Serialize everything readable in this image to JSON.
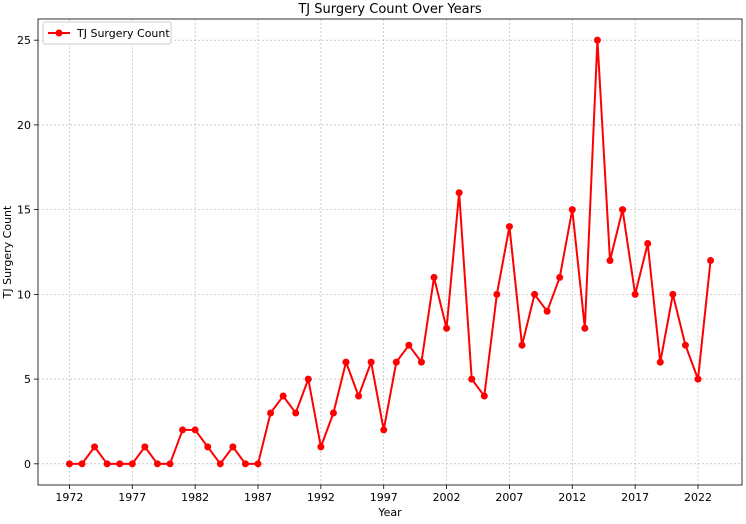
{
  "chart_data": {
    "type": "line",
    "title": "TJ Surgery Count Over Years",
    "xlabel": "Year",
    "ylabel": "TJ Surgery Count",
    "xlim": [
      1969.5,
      2025.5
    ],
    "ylim": [
      -1.25,
      26.25
    ],
    "xticks": [
      1972,
      1977,
      1982,
      1987,
      1992,
      1997,
      2002,
      2007,
      2012,
      2017,
      2022
    ],
    "yticks": [
      0,
      5,
      10,
      15,
      20,
      25
    ],
    "grid": true,
    "grid_style": "dotted",
    "legend_position": "upper-left",
    "series": [
      {
        "name": "TJ Surgery Count",
        "color": "#ff0000",
        "marker": "circle",
        "x": [
          1972,
          1973,
          1974,
          1975,
          1976,
          1977,
          1978,
          1979,
          1980,
          1981,
          1982,
          1983,
          1984,
          1985,
          1986,
          1987,
          1988,
          1989,
          1990,
          1991,
          1992,
          1993,
          1994,
          1995,
          1996,
          1997,
          1998,
          1999,
          2000,
          2001,
          2002,
          2003,
          2004,
          2005,
          2006,
          2007,
          2008,
          2009,
          2010,
          2011,
          2012,
          2013,
          2014,
          2015,
          2016,
          2017,
          2018,
          2019,
          2020,
          2021,
          2022,
          2023
        ],
        "y": [
          0,
          0,
          1,
          0,
          0,
          0,
          1,
          0,
          0,
          2,
          2,
          1,
          0,
          1,
          0,
          0,
          3,
          4,
          3,
          5,
          1,
          3,
          6,
          4,
          6,
          2,
          6,
          7,
          6,
          11,
          8,
          16,
          5,
          4,
          10,
          14,
          7,
          10,
          9,
          11,
          15,
          8,
          25,
          12,
          15,
          10,
          13,
          6,
          10,
          7,
          5,
          12
        ]
      }
    ]
  }
}
